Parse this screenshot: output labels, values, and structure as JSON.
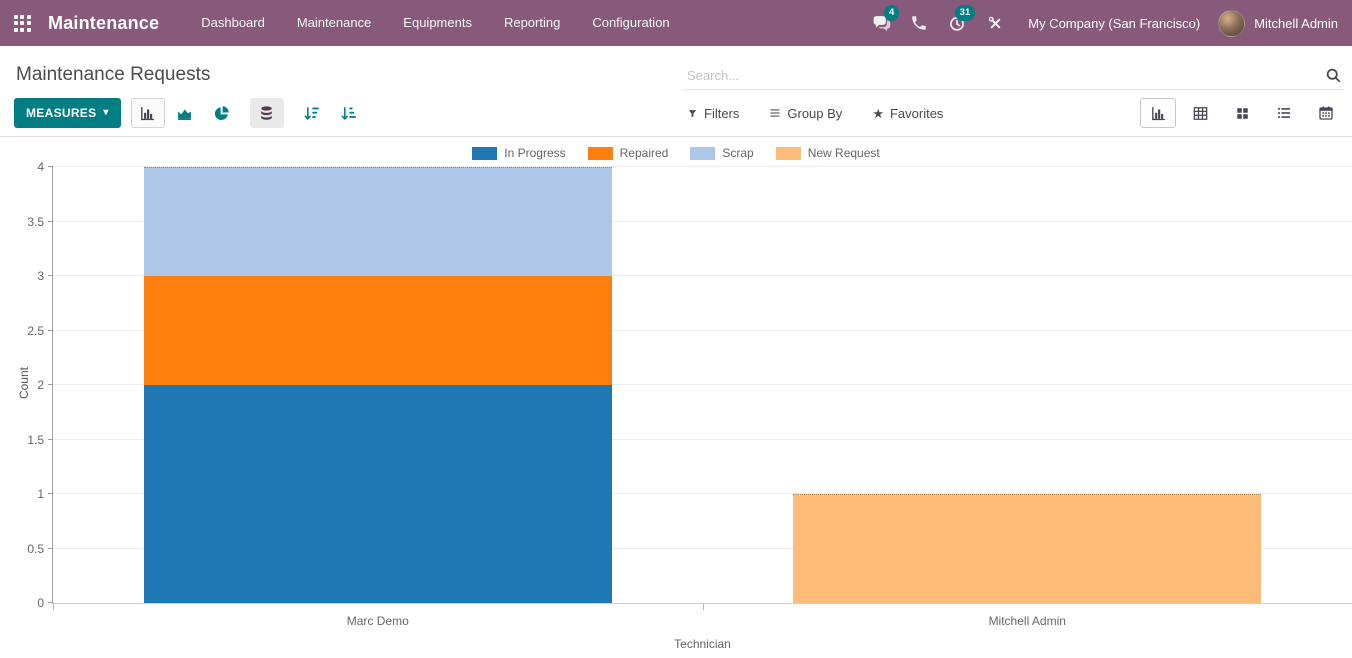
{
  "navbar": {
    "app_name": "Maintenance",
    "menus": [
      "Dashboard",
      "Maintenance",
      "Equipments",
      "Reporting",
      "Configuration"
    ]
  },
  "systray": {
    "messages_badge": "4",
    "activities_badge": "31",
    "company": "My Company (San Francisco)",
    "user": "Mitchell Admin"
  },
  "control_panel": {
    "title": "Maintenance Requests",
    "search_placeholder": "Search...",
    "measures_label": "MEASURES",
    "filters_label": "Filters",
    "group_by_label": "Group By",
    "favorites_label": "Favorites"
  },
  "icons": {
    "apps-grid-icon": "3x3 dot grid",
    "messages-icon": "chat bubbles",
    "phone-icon": "phone handset",
    "activities-icon": "clock",
    "tools-icon": "crossed wrench and screwdriver",
    "search-icon": "magnifier",
    "bar-chart-icon": "vertical bars",
    "area-chart-icon": "filled line area",
    "pie-chart-icon": "pie with slice",
    "stacked-icon": "database stack",
    "sort-desc-icon": "arrow down with decreasing bars",
    "sort-asc-icon": "arrow down with increasing bars",
    "filter-icon": "funnel",
    "group-by-icon": "three lines",
    "favorites-icon": "star",
    "view-graph-icon": "bar chart",
    "view-pivot-icon": "table grid",
    "view-kanban-icon": "four tiles",
    "view-list-icon": "bulleted rows",
    "view-calendar-icon": "calendar"
  },
  "colors": {
    "navbar_bg": "#875A7B",
    "accent": "#017E84",
    "badge": "#017E84",
    "icon_dark": "#3f3f4e",
    "text": "#4c4c4c",
    "grid": "#ececec",
    "axis": "#9e9e9e",
    "axis_light": "#cfcfcf"
  },
  "chart_data": {
    "type": "bar",
    "stacked": true,
    "title": "",
    "xlabel": "Technician",
    "ylabel": "Count",
    "categories": [
      "Marc Demo",
      "Mitchell Admin"
    ],
    "series": [
      {
        "name": "In Progress",
        "color": "#1f77b4",
        "values": [
          2,
          0
        ]
      },
      {
        "name": "Repaired",
        "color": "#ff7f0e",
        "values": [
          1,
          0
        ]
      },
      {
        "name": "Scrap",
        "color": "#aec7e8",
        "values": [
          1,
          0
        ]
      },
      {
        "name": "New Request",
        "color": "#ffbb78",
        "values": [
          0,
          1
        ]
      }
    ],
    "ylim": [
      0,
      4
    ],
    "ytick_step": 0.5,
    "grid": true,
    "legend_position": "top",
    "bar_slot_ratio": 0.72
  }
}
